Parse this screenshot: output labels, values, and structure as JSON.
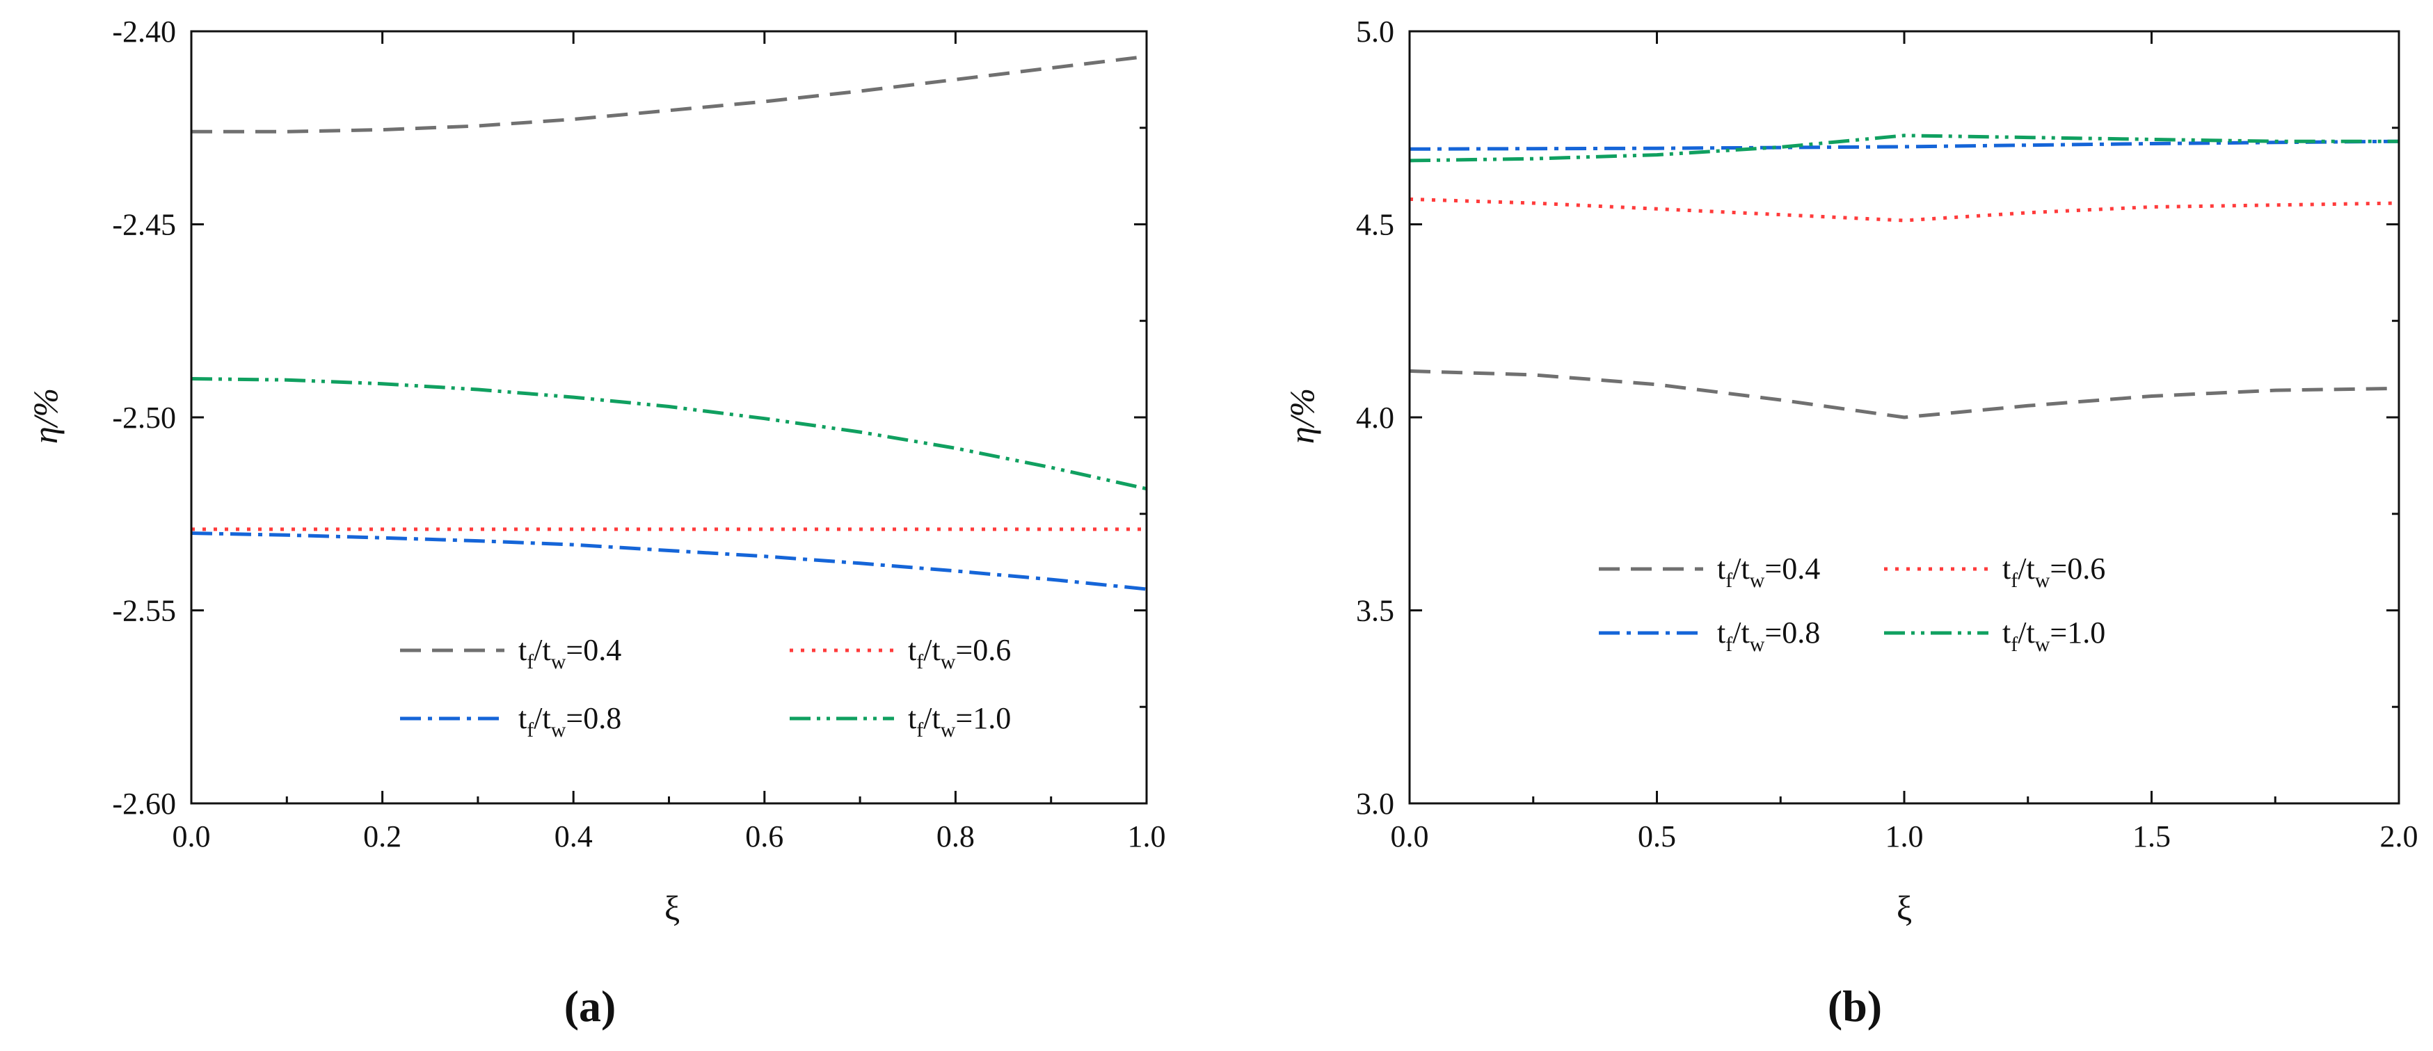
{
  "chart_data": [
    {
      "type": "line",
      "panel_label": "(a)",
      "xlabel": "ξ",
      "ylabel": "η/%",
      "xlim": [
        0.0,
        1.0
      ],
      "ylim": [
        -2.6,
        -2.4
      ],
      "xticks": [
        "0.0",
        "0.2",
        "0.4",
        "0.6",
        "0.8",
        "1.0"
      ],
      "yticks": [
        "-2.60",
        "-2.55",
        "-2.50",
        "-2.45",
        "-2.40"
      ],
      "legend_position": "lower-right",
      "x": [
        0.0,
        0.1,
        0.2,
        0.3,
        0.4,
        0.5,
        0.6,
        0.7,
        0.8,
        0.9,
        1.0
      ],
      "series": [
        {
          "name": "tf/tw=0.4",
          "base": "t",
          "sub1": "f",
          "sub2": "w",
          "value": "=0.4",
          "color": "#707070",
          "dash": "dashed",
          "values": [
            -2.426,
            -2.426,
            -2.4255,
            -2.4245,
            -2.4228,
            -2.4205,
            -2.4182,
            -2.4155,
            -2.4125,
            -2.4095,
            -2.4065
          ]
        },
        {
          "name": "tf/tw=0.6",
          "base": "t",
          "sub1": "f",
          "sub2": "w",
          "value": "=0.6",
          "color": "#ff3b3b",
          "dash": "dotted",
          "values": [
            -2.529,
            -2.529,
            -2.529,
            -2.529,
            -2.529,
            -2.529,
            -2.529,
            -2.529,
            -2.529,
            -2.529,
            -2.529
          ]
        },
        {
          "name": "tf/tw=0.8",
          "base": "t",
          "sub1": "f",
          "sub2": "w",
          "value": "=0.8",
          "color": "#1565d8",
          "dash": "dashdot",
          "values": [
            -2.53,
            -2.5305,
            -2.5312,
            -2.532,
            -2.533,
            -2.5345,
            -2.536,
            -2.5378,
            -2.5398,
            -2.542,
            -2.5445
          ]
        },
        {
          "name": "tf/tw=1.0",
          "base": "t",
          "sub1": "f",
          "sub2": "w",
          "value": "=1.0",
          "color": "#10a060",
          "dash": "dashdotdot",
          "values": [
            -2.49,
            -2.4903,
            -2.4913,
            -2.4928,
            -2.4948,
            -2.4972,
            -2.5003,
            -2.5038,
            -2.508,
            -2.513,
            -2.5185
          ]
        }
      ]
    },
    {
      "type": "line",
      "panel_label": "(b)",
      "xlabel": "ξ",
      "ylabel": "η/%",
      "xlim": [
        0.0,
        2.0
      ],
      "ylim": [
        3.0,
        5.0
      ],
      "xticks": [
        "0.0",
        "0.5",
        "1.0",
        "1.5",
        "2.0"
      ],
      "yticks": [
        "3.0",
        "3.5",
        "4.0",
        "4.5",
        "5.0"
      ],
      "legend_position": "lower-center",
      "x": [
        0.0,
        0.25,
        0.5,
        0.75,
        1.0,
        1.25,
        1.5,
        1.75,
        2.0
      ],
      "series": [
        {
          "name": "tf/tw=0.4",
          "base": "t",
          "sub1": "f",
          "sub2": "w",
          "value": "=0.4",
          "color": "#707070",
          "dash": "dashed",
          "values": [
            4.12,
            4.11,
            4.085,
            4.045,
            4.0,
            4.03,
            4.055,
            4.07,
            4.075
          ]
        },
        {
          "name": "tf/tw=0.6",
          "base": "t",
          "sub1": "f",
          "sub2": "w",
          "value": "=0.6",
          "color": "#ff3b3b",
          "dash": "dotted",
          "values": [
            4.565,
            4.555,
            4.54,
            4.525,
            4.51,
            4.53,
            4.545,
            4.55,
            4.555
          ]
        },
        {
          "name": "tf/tw=0.8",
          "base": "t",
          "sub1": "f",
          "sub2": "w",
          "value": "=0.8",
          "color": "#1565d8",
          "dash": "dashdot",
          "values": [
            4.695,
            4.696,
            4.697,
            4.699,
            4.701,
            4.705,
            4.709,
            4.712,
            4.715
          ]
        },
        {
          "name": "tf/tw=1.0",
          "base": "t",
          "sub1": "f",
          "sub2": "w",
          "value": "=1.0",
          "color": "#10a060",
          "dash": "dashdotdot",
          "values": [
            4.665,
            4.67,
            4.68,
            4.7,
            4.73,
            4.725,
            4.72,
            4.715,
            4.715
          ]
        }
      ]
    }
  ]
}
